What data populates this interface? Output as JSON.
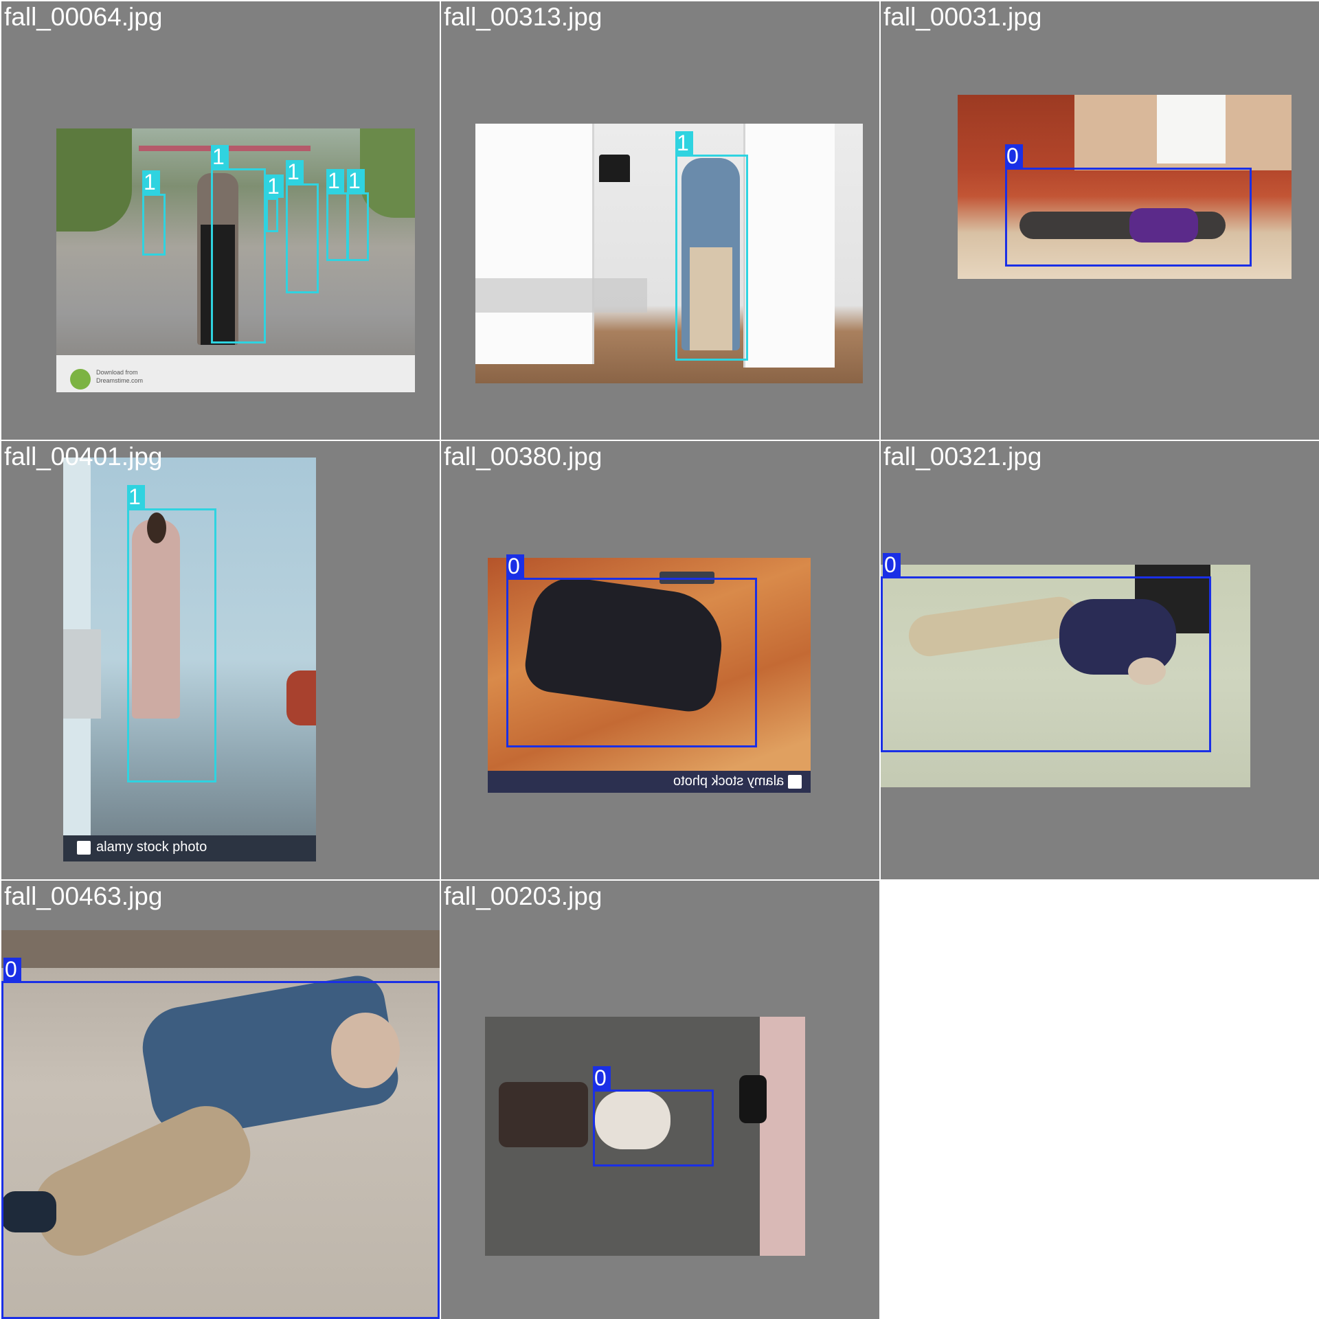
{
  "colors": {
    "class_0": "#1a2fe6",
    "class_1": "#2fd3e0",
    "tile_bg": "#808080"
  },
  "tiles": [
    {
      "filename": "fall_00064.jpg",
      "boxes": [
        "1",
        "1",
        "1",
        "1",
        "1",
        "1"
      ]
    },
    {
      "filename": "fall_00313.jpg",
      "boxes": [
        "1"
      ]
    },
    {
      "filename": "fall_00031.jpg",
      "boxes": [
        "0"
      ]
    },
    {
      "filename": "fall_00401.jpg",
      "boxes": [
        "1"
      ],
      "watermark": "alamy stock photo"
    },
    {
      "filename": "fall_00380.jpg",
      "boxes": [
        "0"
      ],
      "watermark": "alamy stock photo"
    },
    {
      "filename": "fall_00321.jpg",
      "boxes": [
        "0"
      ]
    },
    {
      "filename": "fall_00463.jpg",
      "boxes": [
        "0"
      ]
    },
    {
      "filename": "fall_00203.jpg",
      "boxes": [
        "0"
      ]
    }
  ]
}
